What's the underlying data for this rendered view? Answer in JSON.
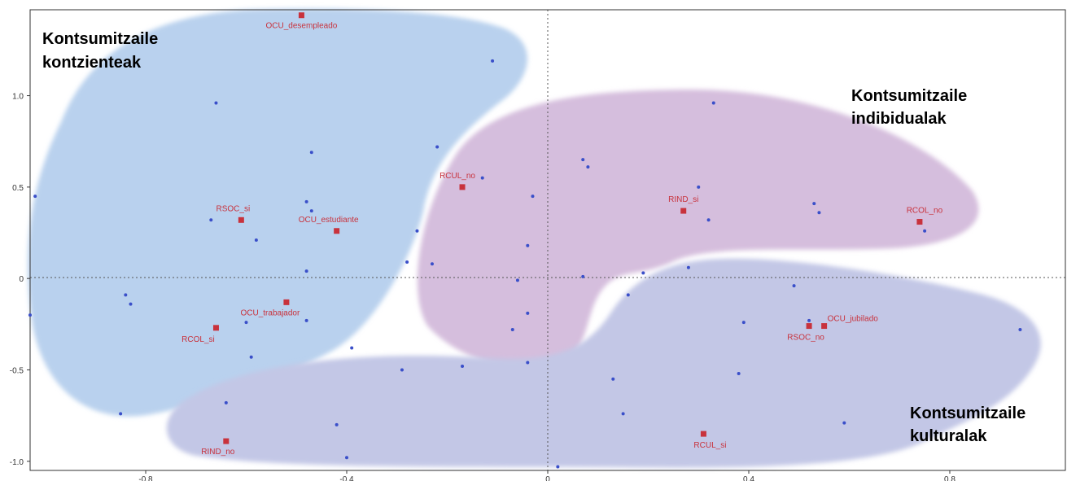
{
  "colors": {
    "region_blue": "#b9d1ee",
    "region_purple": "#d5bedd",
    "region_lavender": "#c3c7e6",
    "point_blue": "#3a4fc9",
    "category_red": "#c8323c"
  },
  "regions": {
    "kontzienteak": [
      "Kontsumitzaile",
      "kontzienteak"
    ],
    "indibidualak": [
      "Kontsumitzaile",
      "indibidualak"
    ],
    "kulturalak": [
      "Kontsumitzaile",
      "kulturalak"
    ]
  },
  "chart_data": {
    "type": "scatter",
    "title": "",
    "xlabel": "",
    "ylabel": "",
    "xlim": [
      -1.03,
      1.03
    ],
    "ylim": [
      -1.05,
      1.47
    ],
    "x_ticks": [
      -0.8,
      -0.4,
      0,
      0.4,
      0.8
    ],
    "x_tick_labels": [
      "-0.8",
      "-0.4",
      "0",
      "0.4",
      "0.8"
    ],
    "y_ticks": [
      1.0,
      0.5,
      0,
      -0.5,
      -1.0
    ],
    "y_tick_labels": [
      "1.0",
      "0.5",
      "0",
      "-0.5",
      "-1.0"
    ],
    "grid": false,
    "reference_lines": {
      "x": 0,
      "y": 0,
      "style": "dotted"
    },
    "categories": [
      {
        "label": "OCU_desempleado",
        "x": -0.49,
        "y": 1.44
      },
      {
        "label": "RCUL_no",
        "x": -0.17,
        "y": 0.5
      },
      {
        "label": "RSOC_si",
        "x": -0.61,
        "y": 0.32
      },
      {
        "label": "OCU_estudiante",
        "x": -0.42,
        "y": 0.26
      },
      {
        "label": "OCU_trabajador",
        "x": -0.52,
        "y": -0.13
      },
      {
        "label": "RCOL_si",
        "x": -0.66,
        "y": -0.27
      },
      {
        "label": "RIND_si",
        "x": 0.27,
        "y": 0.37
      },
      {
        "label": "RCOL_no",
        "x": 0.74,
        "y": 0.31
      },
      {
        "label": "OCU_jubilado",
        "x": 0.55,
        "y": -0.26
      },
      {
        "label": "RSOC_no",
        "x": 0.52,
        "y": -0.26
      },
      {
        "label": "RCUL_si",
        "x": 0.31,
        "y": -0.85
      },
      {
        "label": "RIND_no",
        "x": -0.64,
        "y": -0.89
      }
    ],
    "points": [
      {
        "x": -1.02,
        "y": 0.45
      },
      {
        "x": -1.03,
        "y": -0.2
      },
      {
        "x": -0.84,
        "y": -0.09
      },
      {
        "x": -0.83,
        "y": -0.14
      },
      {
        "x": -0.85,
        "y": -0.74
      },
      {
        "x": -0.66,
        "y": 0.96
      },
      {
        "x": -0.67,
        "y": 0.32
      },
      {
        "x": -0.58,
        "y": 0.21
      },
      {
        "x": -0.6,
        "y": -0.24
      },
      {
        "x": -0.59,
        "y": -0.43
      },
      {
        "x": -0.64,
        "y": -0.68
      },
      {
        "x": -0.47,
        "y": 0.69
      },
      {
        "x": -0.48,
        "y": 0.42
      },
      {
        "x": -0.47,
        "y": 0.37
      },
      {
        "x": -0.48,
        "y": 0.04
      },
      {
        "x": -0.48,
        "y": -0.23
      },
      {
        "x": -0.39,
        "y": -0.38
      },
      {
        "x": -0.42,
        "y": -0.8
      },
      {
        "x": -0.4,
        "y": -0.98
      },
      {
        "x": -0.11,
        "y": 1.19
      },
      {
        "x": -0.22,
        "y": 0.72
      },
      {
        "x": -0.13,
        "y": 0.55
      },
      {
        "x": -0.26,
        "y": 0.26
      },
      {
        "x": -0.28,
        "y": 0.09
      },
      {
        "x": -0.23,
        "y": 0.08
      },
      {
        "x": -0.29,
        "y": -0.5
      },
      {
        "x": -0.17,
        "y": -0.48
      },
      {
        "x": -0.03,
        "y": 0.45
      },
      {
        "x": -0.04,
        "y": 0.18
      },
      {
        "x": -0.06,
        "y": -0.01
      },
      {
        "x": -0.04,
        "y": -0.19
      },
      {
        "x": -0.07,
        "y": -0.28
      },
      {
        "x": -0.04,
        "y": -0.46
      },
      {
        "x": 0.07,
        "y": 0.65
      },
      {
        "x": 0.08,
        "y": 0.61
      },
      {
        "x": 0.07,
        "y": 0.01
      },
      {
        "x": 0.02,
        "y": -1.03
      },
      {
        "x": 0.33,
        "y": 0.96
      },
      {
        "x": 0.3,
        "y": 0.5
      },
      {
        "x": 0.32,
        "y": 0.32
      },
      {
        "x": 0.19,
        "y": 0.03
      },
      {
        "x": 0.28,
        "y": 0.06
      },
      {
        "x": 0.16,
        "y": -0.09
      },
      {
        "x": 0.13,
        "y": -0.55
      },
      {
        "x": 0.15,
        "y": -0.74
      },
      {
        "x": 0.53,
        "y": 0.41
      },
      {
        "x": 0.54,
        "y": 0.36
      },
      {
        "x": 0.49,
        "y": -0.04
      },
      {
        "x": 0.52,
        "y": -0.23
      },
      {
        "x": 0.39,
        "y": -0.24
      },
      {
        "x": 0.38,
        "y": -0.52
      },
      {
        "x": 0.59,
        "y": -0.79
      },
      {
        "x": 0.75,
        "y": 0.26
      },
      {
        "x": 0.94,
        "y": -0.28
      }
    ]
  }
}
